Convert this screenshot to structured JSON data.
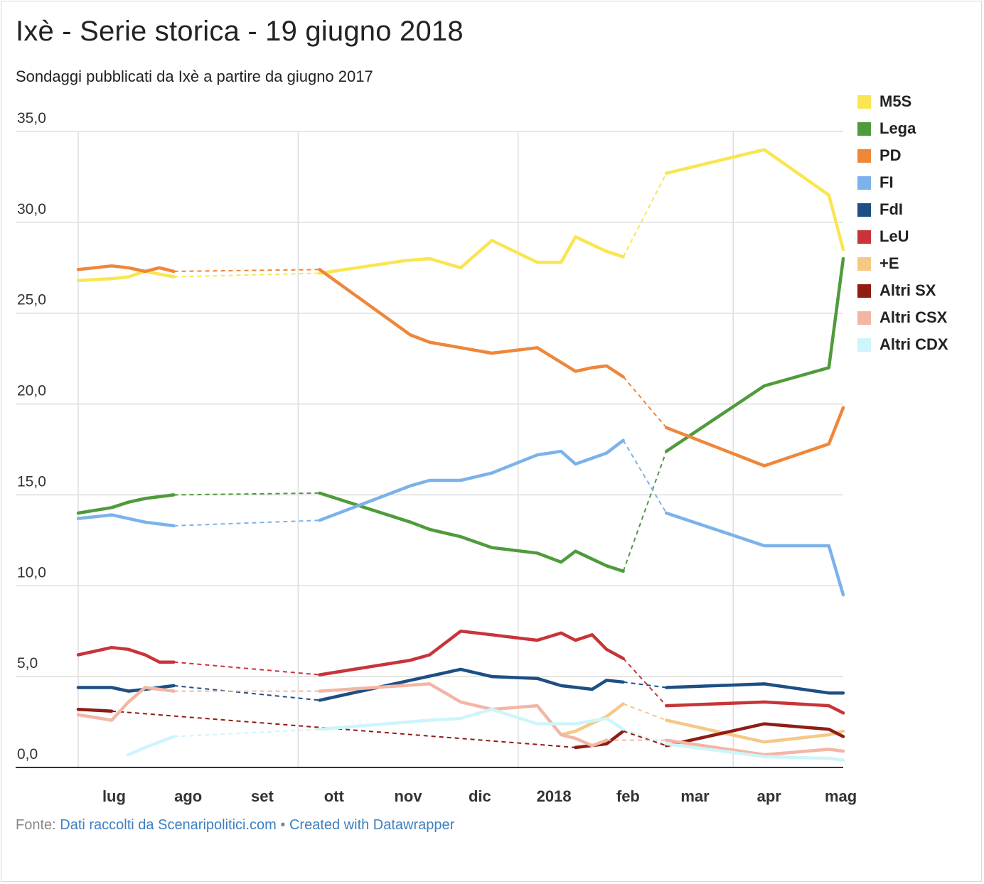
{
  "header": {
    "title": "Ixè - Serie storica - 19 giugno 2018",
    "subtitle": "Sondaggi pubblicati da Ixè a partire da giugno 2017"
  },
  "footer": {
    "source_prefix": "Fonte:",
    "source_link": "Dati raccolti da Scenaripolitici.com",
    "separator": "•",
    "credit_link": "Created with Datawrapper"
  },
  "chart_data": {
    "type": "line",
    "title": "Ixè - Serie storica - 19 giugno 2018",
    "subtitle": "Sondaggi pubblicati da Ixè a partire da giugno 2017",
    "xlabel": "",
    "ylabel": "",
    "ylim": [
      0,
      35
    ],
    "xlim": [
      "2017-07-01",
      "2018-06-01"
    ],
    "y_ticks": [
      "0,0",
      "5,0",
      "10,0",
      "15,0",
      "20,0",
      "25,0",
      "30,0",
      "35,0"
    ],
    "y_tick_values": [
      0,
      5,
      10,
      15,
      20,
      25,
      30,
      35
    ],
    "x_ticks": [
      {
        "label": "lug",
        "date": "2017-07-01"
      },
      {
        "label": "ago",
        "date": "2017-08-01"
      },
      {
        "label": "set",
        "date": "2017-09-01"
      },
      {
        "label": "ott",
        "date": "2017-10-01"
      },
      {
        "label": "nov",
        "date": "2017-11-01"
      },
      {
        "label": "dic",
        "date": "2017-12-01"
      },
      {
        "label": "2018",
        "date": "2018-01-01"
      },
      {
        "label": "feb",
        "date": "2018-02-01"
      },
      {
        "label": "mar",
        "date": "2018-03-01"
      },
      {
        "label": "apr",
        "date": "2018-04-01"
      },
      {
        "label": "mag",
        "date": "2018-05-01"
      }
    ],
    "gridlines": true,
    "legend_position": "right",
    "gap_style": "dashed",
    "series": [
      {
        "name": "M5S",
        "color": "#fae552",
        "points": [
          [
            "2017-07-01",
            26.8
          ],
          [
            "2017-07-15",
            26.9
          ],
          [
            "2017-07-22",
            27.0
          ],
          [
            "2017-07-29",
            27.3
          ],
          [
            "2017-08-10",
            27.0
          ],
          null,
          [
            "2017-10-10",
            27.2
          ],
          [
            "2017-11-15",
            27.9
          ],
          [
            "2017-11-25",
            28.0
          ],
          [
            "2017-12-08",
            27.5
          ],
          [
            "2017-12-21",
            29.0
          ],
          [
            "2018-01-09",
            27.8
          ],
          [
            "2018-01-19",
            27.8
          ],
          [
            "2018-01-25",
            29.2
          ],
          [
            "2018-02-07",
            28.4
          ],
          [
            "2018-02-14",
            28.1
          ],
          null,
          [
            "2018-03-04",
            32.7
          ],
          [
            "2018-04-14",
            34.0
          ],
          [
            "2018-05-11",
            31.5
          ],
          [
            "2018-05-17",
            28.5
          ]
        ]
      },
      {
        "name": "Lega",
        "color": "#4f9b3b",
        "points": [
          [
            "2017-07-01",
            14.0
          ],
          [
            "2017-07-15",
            14.3
          ],
          [
            "2017-07-22",
            14.6
          ],
          [
            "2017-07-29",
            14.8
          ],
          [
            "2017-08-10",
            15.0
          ],
          null,
          [
            "2017-10-10",
            15.1
          ],
          [
            "2017-11-17",
            13.5
          ],
          [
            "2017-11-25",
            13.1
          ],
          [
            "2017-12-08",
            12.7
          ],
          [
            "2017-12-21",
            12.1
          ],
          [
            "2018-01-09",
            11.8
          ],
          [
            "2018-01-19",
            11.3
          ],
          [
            "2018-01-25",
            11.9
          ],
          [
            "2018-02-07",
            11.1
          ],
          [
            "2018-02-14",
            10.8
          ],
          null,
          [
            "2018-03-04",
            17.4
          ],
          [
            "2018-04-14",
            21.0
          ],
          [
            "2018-05-11",
            22.0
          ],
          [
            "2018-05-17",
            28.0
          ]
        ]
      },
      {
        "name": "PD",
        "color": "#ee873a",
        "points": [
          [
            "2017-07-01",
            27.4
          ],
          [
            "2017-07-15",
            27.6
          ],
          [
            "2017-07-22",
            27.5
          ],
          [
            "2017-07-29",
            27.3
          ],
          [
            "2017-08-04",
            27.5
          ],
          [
            "2017-08-10",
            27.3
          ],
          null,
          [
            "2017-10-10",
            27.4
          ],
          [
            "2017-11-17",
            23.8
          ],
          [
            "2017-11-25",
            23.4
          ],
          [
            "2017-12-08",
            23.1
          ],
          [
            "2017-12-21",
            22.8
          ],
          [
            "2018-01-09",
            23.1
          ],
          [
            "2018-01-25",
            21.8
          ],
          [
            "2018-02-01",
            22.0
          ],
          [
            "2018-02-07",
            22.1
          ],
          [
            "2018-02-14",
            21.5
          ],
          null,
          [
            "2018-03-04",
            18.7
          ],
          [
            "2018-04-14",
            16.6
          ],
          [
            "2018-05-11",
            17.8
          ],
          [
            "2018-05-17",
            19.8
          ]
        ]
      },
      {
        "name": "FI",
        "color": "#7cb2ea",
        "points": [
          [
            "2017-07-01",
            13.7
          ],
          [
            "2017-07-15",
            13.9
          ],
          [
            "2017-07-29",
            13.5
          ],
          [
            "2017-08-10",
            13.3
          ],
          null,
          [
            "2017-10-10",
            13.6
          ],
          [
            "2017-11-17",
            15.5
          ],
          [
            "2017-11-25",
            15.8
          ],
          [
            "2017-12-08",
            15.8
          ],
          [
            "2017-12-21",
            16.2
          ],
          [
            "2018-01-09",
            17.2
          ],
          [
            "2018-01-19",
            17.4
          ],
          [
            "2018-01-25",
            16.7
          ],
          [
            "2018-02-07",
            17.3
          ],
          [
            "2018-02-14",
            18.0
          ],
          null,
          [
            "2018-03-04",
            14.0
          ],
          [
            "2018-04-14",
            12.2
          ],
          [
            "2018-05-11",
            12.2
          ],
          [
            "2018-05-17",
            9.5
          ]
        ]
      },
      {
        "name": "FdI",
        "color": "#1d4f85",
        "points": [
          [
            "2017-07-01",
            4.4
          ],
          [
            "2017-07-15",
            4.4
          ],
          [
            "2017-07-22",
            4.2
          ],
          [
            "2017-07-29",
            4.3
          ],
          [
            "2017-08-10",
            4.5
          ],
          null,
          [
            "2017-10-10",
            3.7
          ],
          [
            "2017-11-17",
            4.8
          ],
          [
            "2017-12-08",
            5.4
          ],
          [
            "2017-12-21",
            5.0
          ],
          [
            "2018-01-09",
            4.9
          ],
          [
            "2018-01-19",
            4.5
          ],
          [
            "2018-02-01",
            4.3
          ],
          [
            "2018-02-07",
            4.8
          ],
          [
            "2018-02-14",
            4.7
          ],
          null,
          [
            "2018-03-04",
            4.4
          ],
          [
            "2018-04-14",
            4.6
          ],
          [
            "2018-05-11",
            4.1
          ],
          [
            "2018-05-17",
            4.1
          ]
        ]
      },
      {
        "name": "LeU",
        "color": "#c7343a",
        "points": [
          [
            "2017-07-01",
            6.2
          ],
          [
            "2017-07-15",
            6.6
          ],
          [
            "2017-07-22",
            6.5
          ],
          [
            "2017-07-29",
            6.2
          ],
          [
            "2017-08-04",
            5.8
          ],
          [
            "2017-08-10",
            5.8
          ],
          null,
          [
            "2017-10-10",
            5.1
          ],
          [
            "2017-11-17",
            5.9
          ],
          [
            "2017-11-25",
            6.2
          ],
          [
            "2017-12-08",
            7.5
          ],
          [
            "2017-12-21",
            7.3
          ],
          [
            "2018-01-09",
            7.0
          ],
          [
            "2018-01-19",
            7.4
          ],
          [
            "2018-01-25",
            7.0
          ],
          [
            "2018-02-01",
            7.3
          ],
          [
            "2018-02-07",
            6.5
          ],
          [
            "2018-02-14",
            6.0
          ],
          null,
          [
            "2018-03-04",
            3.4
          ],
          [
            "2018-04-14",
            3.6
          ],
          [
            "2018-05-11",
            3.4
          ],
          [
            "2018-05-17",
            3.0
          ]
        ]
      },
      {
        "name": "+E",
        "color": "#f6c886",
        "points": [
          [
            "2018-01-19",
            1.8
          ],
          [
            "2018-01-25",
            2.0
          ],
          [
            "2018-02-07",
            2.8
          ],
          [
            "2018-02-14",
            3.5
          ],
          null,
          [
            "2018-03-04",
            2.6
          ],
          [
            "2018-04-14",
            1.4
          ],
          [
            "2018-05-11",
            1.8
          ],
          [
            "2018-05-17",
            2.0
          ]
        ]
      },
      {
        "name": "Altri SX",
        "color": "#8f1d14",
        "points": [
          [
            "2017-07-01",
            3.2
          ],
          [
            "2017-07-15",
            3.1
          ],
          null,
          [
            "2018-01-25",
            1.1
          ],
          [
            "2018-02-07",
            1.3
          ],
          [
            "2018-02-14",
            2.0
          ],
          null,
          [
            "2018-03-04",
            1.2
          ],
          [
            "2018-04-14",
            2.4
          ],
          [
            "2018-05-11",
            2.1
          ],
          [
            "2018-05-17",
            1.7
          ]
        ]
      },
      {
        "name": "Altri CSX",
        "color": "#f3b6a4",
        "points": [
          [
            "2017-07-01",
            2.9
          ],
          [
            "2017-07-15",
            2.6
          ],
          [
            "2017-07-22",
            3.6
          ],
          [
            "2017-07-29",
            4.4
          ],
          [
            "2017-08-10",
            4.2
          ],
          null,
          [
            "2017-10-10",
            4.2
          ],
          [
            "2017-11-25",
            4.6
          ],
          [
            "2017-12-08",
            3.6
          ],
          [
            "2017-12-21",
            3.2
          ],
          [
            "2018-01-09",
            3.4
          ],
          [
            "2018-01-19",
            1.8
          ],
          [
            "2018-01-25",
            1.6
          ],
          [
            "2018-02-01",
            1.2
          ],
          [
            "2018-02-07",
            1.5
          ],
          null,
          [
            "2018-03-04",
            1.5
          ],
          [
            "2018-04-14",
            0.7
          ],
          [
            "2018-05-11",
            1.0
          ],
          [
            "2018-05-17",
            0.9
          ]
        ]
      },
      {
        "name": "Altri CDX",
        "color": "#cdf5fb",
        "points": [
          [
            "2017-07-22",
            0.7
          ],
          [
            "2017-07-29",
            1.1
          ],
          [
            "2017-08-10",
            1.7
          ],
          null,
          [
            "2017-10-10",
            2.1
          ],
          [
            "2017-11-25",
            2.6
          ],
          [
            "2017-12-08",
            2.7
          ],
          [
            "2017-12-21",
            3.2
          ],
          [
            "2018-01-09",
            2.4
          ],
          [
            "2018-01-25",
            2.4
          ],
          [
            "2018-02-07",
            2.7
          ],
          [
            "2018-02-14",
            2.1
          ],
          null,
          [
            "2018-03-04",
            1.3
          ],
          [
            "2018-04-14",
            0.6
          ],
          [
            "2018-05-11",
            0.5
          ],
          [
            "2018-05-17",
            0.4
          ]
        ]
      }
    ]
  }
}
